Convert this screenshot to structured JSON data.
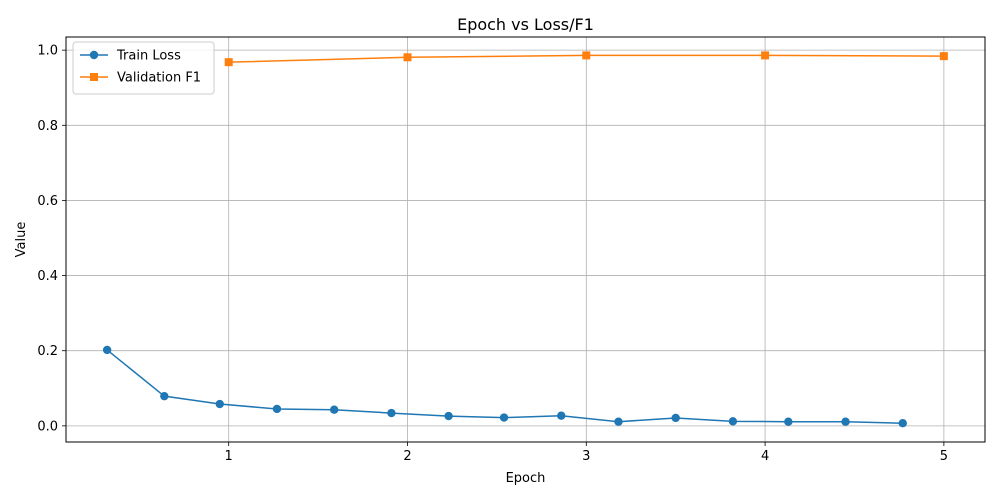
{
  "chart_data": {
    "type": "line",
    "title": "Epoch vs Loss/F1",
    "xlabel": "Epoch",
    "ylabel": "Value",
    "xlim": [
      0.09,
      5.23
    ],
    "ylim": [
      -0.043,
      1.035
    ],
    "x_ticks": [
      1,
      2,
      3,
      4,
      5
    ],
    "y_ticks": [
      0.0,
      0.2,
      0.4,
      0.6,
      0.8,
      1.0
    ],
    "x_tick_labels": [
      "1",
      "2",
      "3",
      "4",
      "5"
    ],
    "y_tick_labels": [
      "0.0",
      "0.2",
      "0.4",
      "0.6",
      "0.8",
      "1.0"
    ],
    "grid": true,
    "legend_position": "top-left",
    "series": [
      {
        "name": "Train Loss",
        "color": "#1f77b4",
        "marker": "circle",
        "x": [
          0.32,
          0.64,
          0.95,
          1.27,
          1.59,
          1.91,
          2.23,
          2.54,
          2.86,
          3.18,
          3.5,
          3.82,
          4.13,
          4.45,
          4.77
        ],
        "y": [
          0.202,
          0.079,
          0.058,
          0.045,
          0.043,
          0.034,
          0.026,
          0.022,
          0.027,
          0.011,
          0.021,
          0.012,
          0.011,
          0.011,
          0.007
        ]
      },
      {
        "name": "Validation F1",
        "color": "#ff7f0e",
        "marker": "square",
        "x": [
          1,
          2,
          3,
          4,
          5
        ],
        "y": [
          0.968,
          0.981,
          0.986,
          0.986,
          0.984
        ]
      }
    ]
  }
}
